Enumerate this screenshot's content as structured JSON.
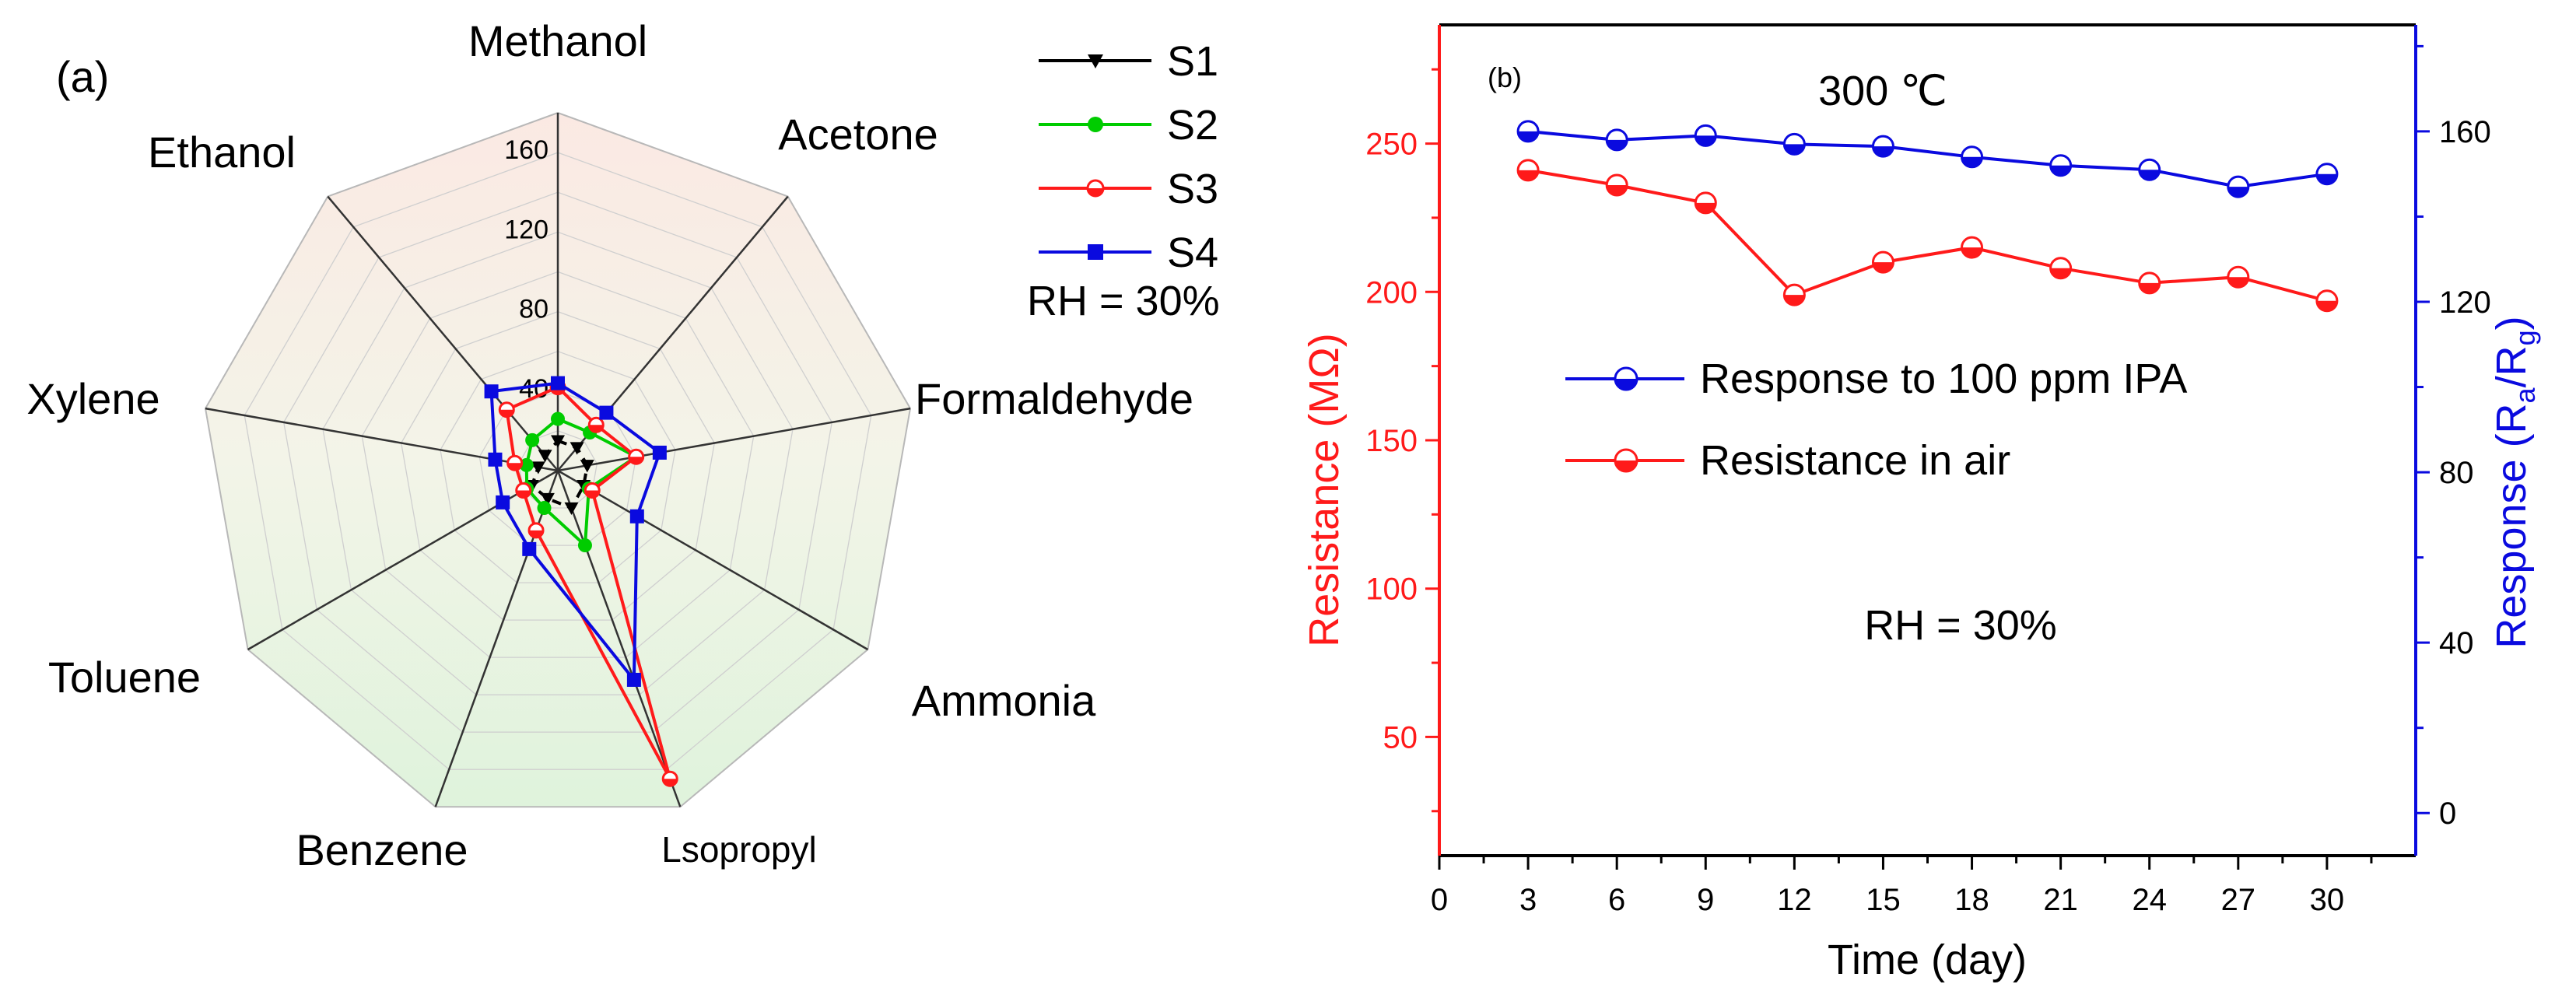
{
  "chart_data": [
    {
      "type": "radar",
      "panel_label": "(a)",
      "axes": [
        "Methanol",
        "Acetone",
        "Formaldehyde",
        "Ammonia",
        "Lsopropyl",
        "Benzene",
        "Toluene",
        "Xylene",
        "Ethanol"
      ],
      "radial_ticks": [
        "40",
        "80",
        "120",
        "160"
      ],
      "radial_tick_values": [
        40,
        80,
        120,
        160
      ],
      "rmax": 180,
      "grid_step": 20,
      "series": [
        {
          "name": "S1",
          "color": "#000000",
          "marker": "triangle-down",
          "dashed": true,
          "values": [
            15,
            15,
            15,
            15,
            20,
            15,
            15,
            10,
            10
          ]
        },
        {
          "name": "S2",
          "color": "#00cc00",
          "marker": "circle",
          "values": [
            26,
            25,
            40,
            18,
            40,
            20,
            18,
            16,
            20
          ]
        },
        {
          "name": "S3",
          "color": "#ff1a1a",
          "marker": "circle-half",
          "values": [
            42,
            30,
            40,
            20,
            165,
            32,
            20,
            22,
            40
          ]
        },
        {
          "name": "S4",
          "color": "#0a0adf",
          "marker": "square",
          "values": [
            44,
            38,
            52,
            46,
            112,
            42,
            32,
            32,
            52
          ]
        }
      ],
      "annotation": "RH = 30%"
    },
    {
      "type": "line",
      "panel_label": "(b)",
      "title": "300 ℃",
      "xlabel": "Time (day)",
      "ylabel_left": "Resistance (MΩ)",
      "ylabel_right_main": "Response (R",
      "ylabel_right_sub1": "a",
      "ylabel_right_mid": "/R",
      "ylabel_right_sub2": "g",
      "ylabel_right_end": ")",
      "x_ticks": [
        "0",
        "3",
        "6",
        "9",
        "12",
        "15",
        "18",
        "21",
        "24",
        "27",
        "30"
      ],
      "x_tick_values": [
        0,
        3,
        6,
        9,
        12,
        15,
        18,
        21,
        24,
        27,
        30
      ],
      "y_left_ticks": [
        "50",
        "100",
        "150",
        "200",
        "250"
      ],
      "y_left_tick_values": [
        50,
        100,
        150,
        200,
        250
      ],
      "y_right_ticks": [
        "0",
        "40",
        "80",
        "120",
        "160"
      ],
      "y_right_tick_values": [
        0,
        40,
        80,
        120,
        160
      ],
      "xlim": [
        0,
        33
      ],
      "ylim_left": [
        10,
        290
      ],
      "ylim_right": [
        -10,
        185
      ],
      "x": [
        3,
        6,
        9,
        12,
        15,
        18,
        21,
        24,
        27,
        30
      ],
      "series": [
        {
          "name": "Response to 100 ppm IPA",
          "axis": "right",
          "color": "#0a0adf",
          "values": [
            160,
            158,
            159,
            157,
            156.5,
            154,
            152,
            151,
            147,
            150
          ]
        },
        {
          "name": "Resistance in air",
          "axis": "left",
          "color": "#ff1a1a",
          "values": [
            241,
            236,
            230,
            199,
            210,
            215,
            208,
            203,
            205,
            197
          ]
        }
      ],
      "annotation": "RH = 30%"
    }
  ]
}
